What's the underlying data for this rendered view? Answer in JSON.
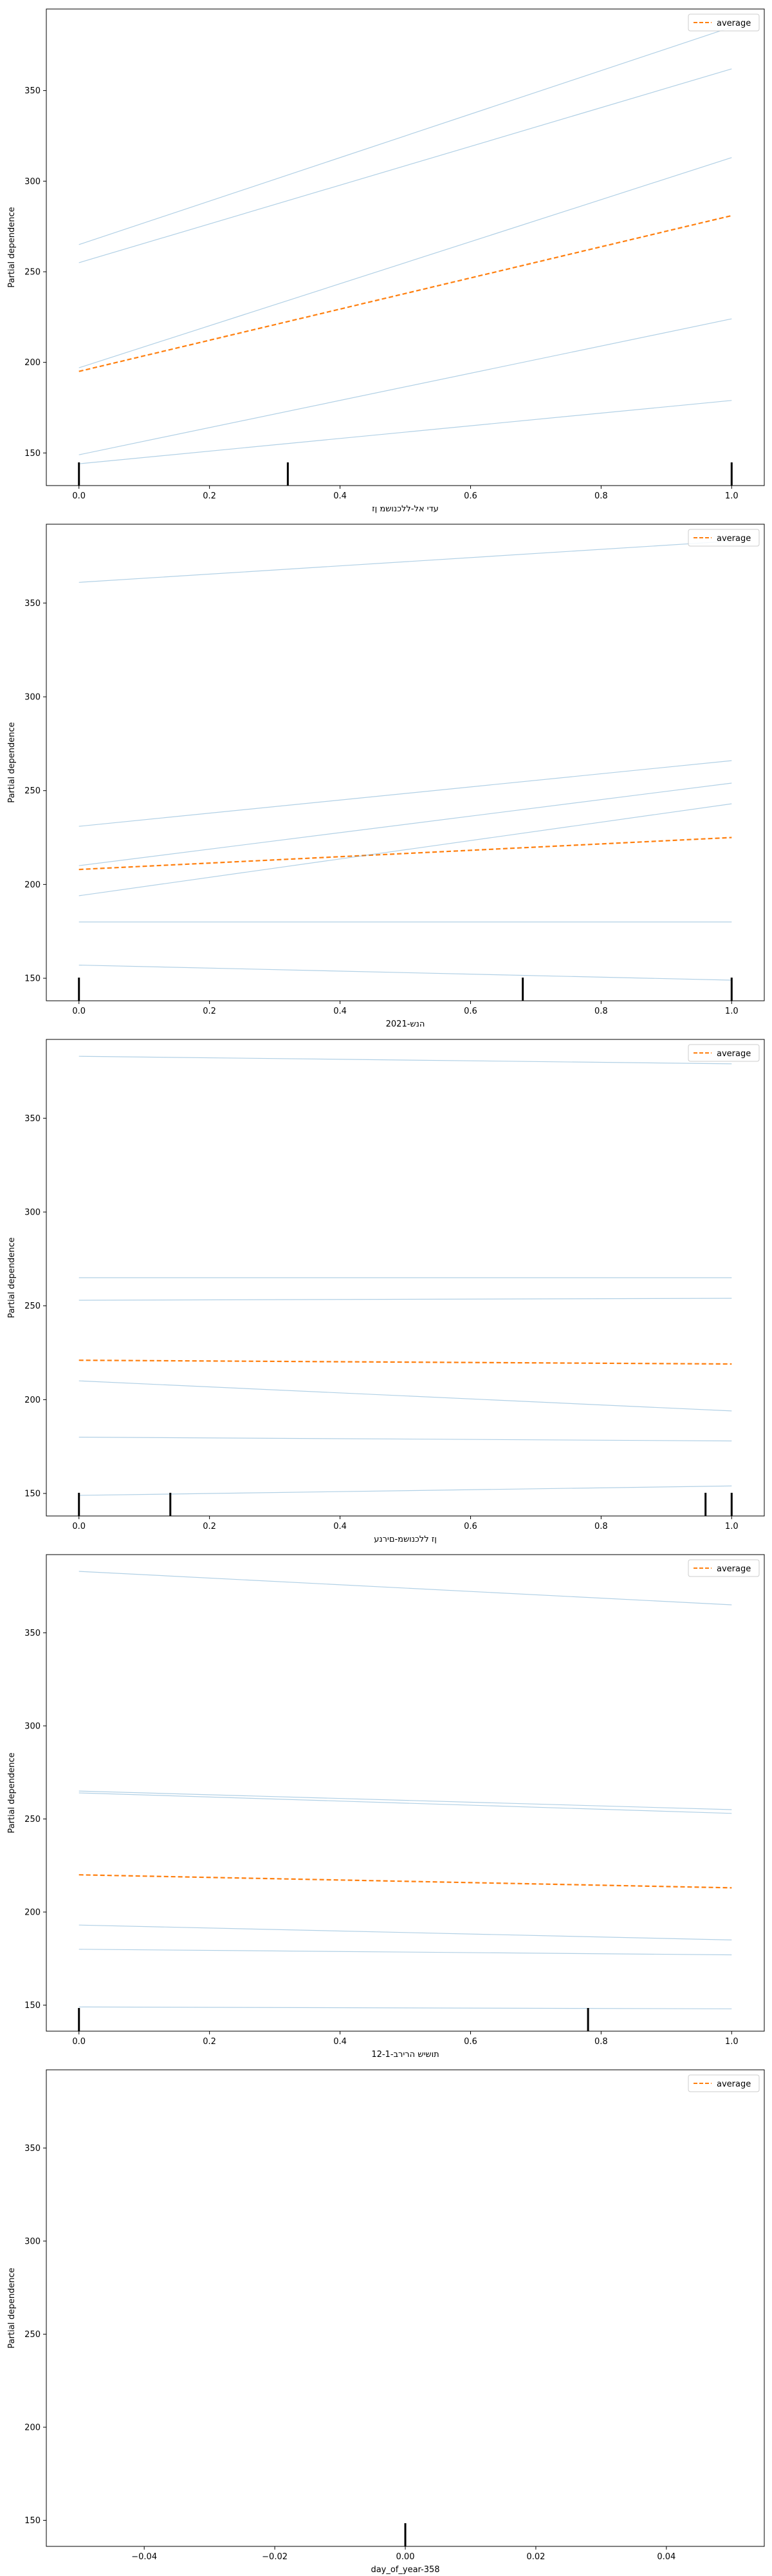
{
  "chart_data": [
    {
      "type": "line",
      "xlabel": "עדי אל-ללכנושמ ןז",
      "ylabel": "Partial dependence",
      "xlim": [
        -0.05,
        1.05
      ],
      "ylim": [
        132,
        395
      ],
      "xticks": [
        "0.0",
        "0.2",
        "0.4",
        "0.6",
        "0.8",
        "1.0"
      ],
      "yticks": [
        "150",
        "200",
        "250",
        "300",
        "350"
      ],
      "grid": false,
      "legend": {
        "position": "top-right",
        "entries": [
          "average"
        ]
      },
      "series": [
        {
          "name": "average",
          "x": [
            0,
            1
          ],
          "y": [
            195,
            281
          ],
          "style": "dashed",
          "color": "#ff7f0e"
        },
        {
          "x": [
            0,
            1
          ],
          "y": [
            265,
            385
          ],
          "color": "#1f77b4"
        },
        {
          "x": [
            0,
            1
          ],
          "y": [
            255,
            362
          ],
          "color": "#1f77b4"
        },
        {
          "x": [
            0,
            1
          ],
          "y": [
            197,
            313
          ],
          "color": "#1f77b4"
        },
        {
          "x": [
            0,
            1
          ],
          "y": [
            149,
            224
          ],
          "color": "#1f77b4"
        },
        {
          "x": [
            0,
            1
          ],
          "y": [
            144,
            179
          ],
          "color": "#1f77b4"
        }
      ],
      "rug": [
        0.0,
        0.32,
        1.0
      ]
    },
    {
      "type": "line",
      "xlabel": "2021-הנש",
      "ylabel": "Partial dependence",
      "xlim": [
        -0.05,
        1.05
      ],
      "ylim": [
        138,
        392
      ],
      "xticks": [
        "0.0",
        "0.2",
        "0.4",
        "0.6",
        "0.8",
        "1.0"
      ],
      "yticks": [
        "150",
        "200",
        "250",
        "300",
        "350"
      ],
      "grid": false,
      "legend": {
        "position": "top-right",
        "entries": [
          "average"
        ]
      },
      "series": [
        {
          "name": "average",
          "x": [
            0,
            1
          ],
          "y": [
            208,
            225
          ],
          "style": "dashed",
          "color": "#ff7f0e"
        },
        {
          "x": [
            0,
            1
          ],
          "y": [
            361,
            383
          ],
          "color": "#1f77b4"
        },
        {
          "x": [
            0,
            1
          ],
          "y": [
            231,
            266
          ],
          "color": "#1f77b4"
        },
        {
          "x": [
            0,
            1
          ],
          "y": [
            210,
            254
          ],
          "color": "#1f77b4"
        },
        {
          "x": [
            0,
            1
          ],
          "y": [
            194,
            243
          ],
          "color": "#1f77b4"
        },
        {
          "x": [
            0,
            1
          ],
          "y": [
            180,
            180
          ],
          "color": "#1f77b4"
        },
        {
          "x": [
            0,
            1
          ],
          "y": [
            157,
            149
          ],
          "color": "#1f77b4"
        }
      ],
      "rug": [
        0.0,
        0.68,
        1.0
      ]
    },
    {
      "type": "line",
      "xlabel": "ןז ללכנושמ-םירנע",
      "ylabel": "Partial dependence",
      "xlim": [
        -0.05,
        1.05
      ],
      "ylim": [
        138,
        392
      ],
      "xticks": [
        "0.0",
        "0.2",
        "0.4",
        "0.6",
        "0.8",
        "1.0"
      ],
      "yticks": [
        "150",
        "200",
        "250",
        "300",
        "350"
      ],
      "grid": false,
      "legend": {
        "position": "top-right",
        "entries": [
          "average"
        ]
      },
      "series": [
        {
          "name": "average",
          "x": [
            0,
            1
          ],
          "y": [
            221,
            219
          ],
          "style": "dashed",
          "color": "#ff7f0e"
        },
        {
          "x": [
            0,
            1
          ],
          "y": [
            383,
            379
          ],
          "color": "#1f77b4"
        },
        {
          "x": [
            0,
            1
          ],
          "y": [
            265,
            265
          ],
          "color": "#1f77b4"
        },
        {
          "x": [
            0,
            1
          ],
          "y": [
            253,
            254
          ],
          "color": "#1f77b4"
        },
        {
          "x": [
            0,
            1
          ],
          "y": [
            210,
            194
          ],
          "color": "#1f77b4"
        },
        {
          "x": [
            0,
            1
          ],
          "y": [
            180,
            178
          ],
          "color": "#1f77b4"
        },
        {
          "x": [
            0,
            1
          ],
          "y": [
            149,
            154
          ],
          "color": "#1f77b4"
        }
      ],
      "rug": [
        0.0,
        0.14,
        0.96,
        1.0
      ]
    },
    {
      "type": "line",
      "xlabel": "תושיש הרירב-12-1",
      "ylabel": "Partial dependence",
      "xlim": [
        -0.05,
        1.05
      ],
      "ylim": [
        136,
        392
      ],
      "xticks": [
        "0.0",
        "0.2",
        "0.4",
        "0.6",
        "0.8",
        "1.0"
      ],
      "yticks": [
        "150",
        "200",
        "250",
        "300",
        "350"
      ],
      "grid": false,
      "legend": {
        "position": "top-right",
        "entries": [
          "average"
        ]
      },
      "series": [
        {
          "name": "average",
          "x": [
            0,
            1
          ],
          "y": [
            220,
            213
          ],
          "style": "dashed",
          "color": "#ff7f0e"
        },
        {
          "x": [
            0,
            1
          ],
          "y": [
            383,
            365
          ],
          "color": "#1f77b4"
        },
        {
          "x": [
            0,
            1
          ],
          "y": [
            265,
            255
          ],
          "color": "#1f77b4"
        },
        {
          "x": [
            0,
            1
          ],
          "y": [
            264,
            253
          ],
          "color": "#1f77b4"
        },
        {
          "x": [
            0,
            1
          ],
          "y": [
            193,
            185
          ],
          "color": "#1f77b4"
        },
        {
          "x": [
            0,
            1
          ],
          "y": [
            180,
            177
          ],
          "color": "#1f77b4"
        },
        {
          "x": [
            0,
            1
          ],
          "y": [
            149,
            148
          ],
          "color": "#1f77b4"
        }
      ],
      "rug": [
        0.0,
        0.78
      ]
    },
    {
      "type": "line",
      "xlabel": "day_of_year-358",
      "ylabel": "Partial dependence",
      "xlim": [
        -0.055,
        0.055
      ],
      "ylim": [
        136,
        392
      ],
      "xticks": [
        "−0.04",
        "−0.02",
        "0.00",
        "0.02",
        "0.04"
      ],
      "yticks": [
        "150",
        "200",
        "250",
        "300",
        "350"
      ],
      "grid": false,
      "legend": {
        "position": "top-right",
        "entries": [
          "average"
        ]
      },
      "series": [],
      "rug": [
        0.0
      ]
    }
  ]
}
